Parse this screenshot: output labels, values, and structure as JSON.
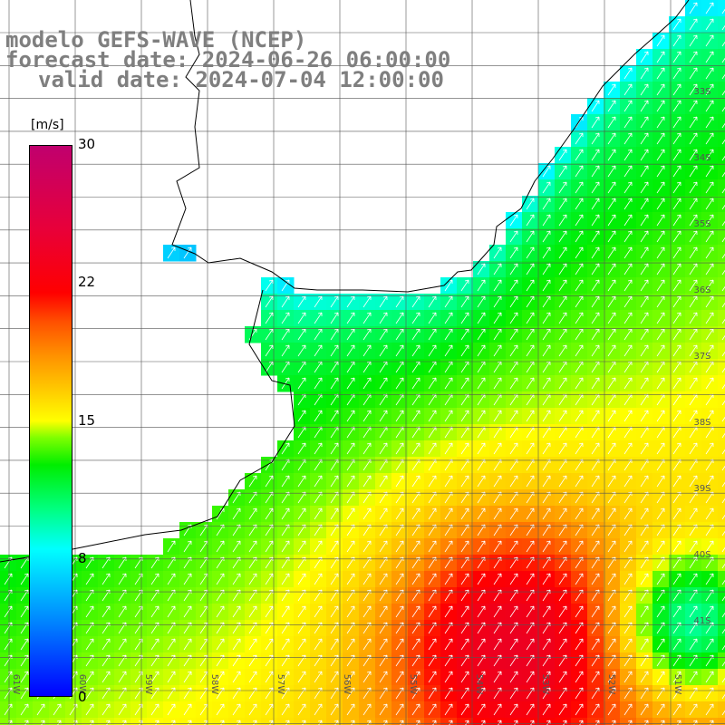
{
  "header": {
    "model": "modelo GEFS-WAVE (NCEP)",
    "forecast": "forecast date: 2024-06-26 06:00:00",
    "valid": "valid date: 2024-07-04 12:00:00"
  },
  "colorbar": {
    "units": "[m/s]",
    "ticks": [
      "30",
      "22",
      "15",
      "8",
      "0"
    ],
    "min": 0,
    "max": 30
  },
  "map": {
    "lat_labels": [
      "33S",
      "34S",
      "35S",
      "36S",
      "37S",
      "38S",
      "39S",
      "40S",
      "41S"
    ],
    "lon_labels": [
      "61W",
      "60W",
      "59W",
      "58W",
      "57W",
      "56W",
      "55W",
      "54W",
      "53W",
      "52W",
      "51W"
    ],
    "colors": {
      "land": "#ffffff",
      "grid": "#555555",
      "coast": "#000000",
      "arrows": "#ffffff"
    }
  }
}
